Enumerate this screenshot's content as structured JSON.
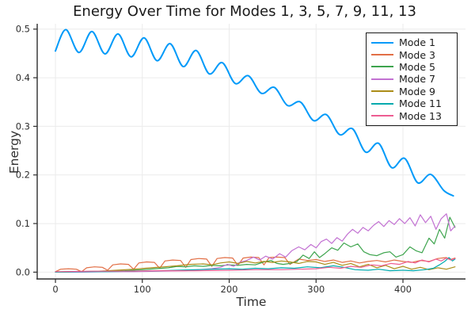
{
  "chart": {
    "title": "Energy Over Time for Modes 1, 3, 5, 7, 9, 11, 13",
    "xlabel": "Time",
    "ylabel": "Energy"
  },
  "chart_data": {
    "type": "line",
    "title": "Energy Over Time for Modes 1, 3, 5, 7, 9, 11, 13",
    "xlabel": "Time",
    "ylabel": "Energy",
    "grid": true,
    "legend_position": "top-right",
    "xlim": [
      -21,
      472
    ],
    "ylim": [
      -0.014,
      0.511
    ],
    "x_ticks": [
      0,
      100,
      200,
      300,
      400
    ],
    "x_tick_labels": [
      "0",
      "100",
      "200",
      "300",
      "400"
    ],
    "y_ticks": [
      0.0,
      0.1,
      0.2,
      0.3,
      0.4,
      0.5
    ],
    "y_tick_labels": [
      "0.0",
      "0.1",
      "0.2",
      "0.3",
      "0.4",
      "0.5"
    ],
    "series": [
      {
        "name": "Mode 1",
        "color": "#009af9",
        "smooth": true,
        "width": 2,
        "points": [
          [
            0,
            0.455
          ],
          [
            12,
            0.499
          ],
          [
            27,
            0.452
          ],
          [
            42,
            0.495
          ],
          [
            57,
            0.449
          ],
          [
            72,
            0.49
          ],
          [
            87,
            0.443
          ],
          [
            102,
            0.482
          ],
          [
            117,
            0.435
          ],
          [
            132,
            0.47
          ],
          [
            147,
            0.423
          ],
          [
            162,
            0.456
          ],
          [
            177,
            0.408
          ],
          [
            192,
            0.431
          ],
          [
            207,
            0.388
          ],
          [
            222,
            0.404
          ],
          [
            237,
            0.368
          ],
          [
            252,
            0.38
          ],
          [
            267,
            0.343
          ],
          [
            282,
            0.35
          ],
          [
            297,
            0.312
          ],
          [
            312,
            0.324
          ],
          [
            327,
            0.283
          ],
          [
            342,
            0.295
          ],
          [
            357,
            0.247
          ],
          [
            372,
            0.265
          ],
          [
            387,
            0.215
          ],
          [
            402,
            0.234
          ],
          [
            417,
            0.184
          ],
          [
            432,
            0.201
          ],
          [
            447,
            0.168
          ],
          [
            458,
            0.157
          ]
        ]
      },
      {
        "name": "Mode 3",
        "color": "#e26f46",
        "smooth": false,
        "width": 1.2,
        "points": [
          [
            0,
            0.001
          ],
          [
            6,
            0.006
          ],
          [
            15,
            0.007
          ],
          [
            24,
            0.006
          ],
          [
            30,
            0.001
          ],
          [
            36,
            0.009
          ],
          [
            45,
            0.011
          ],
          [
            54,
            0.01
          ],
          [
            60,
            0.004
          ],
          [
            66,
            0.015
          ],
          [
            75,
            0.017
          ],
          [
            84,
            0.016
          ],
          [
            90,
            0.006
          ],
          [
            96,
            0.019
          ],
          [
            105,
            0.021
          ],
          [
            114,
            0.02
          ],
          [
            120,
            0.008
          ],
          [
            126,
            0.023
          ],
          [
            135,
            0.025
          ],
          [
            144,
            0.024
          ],
          [
            150,
            0.01
          ],
          [
            156,
            0.026
          ],
          [
            165,
            0.028
          ],
          [
            174,
            0.027
          ],
          [
            180,
            0.012
          ],
          [
            186,
            0.028
          ],
          [
            195,
            0.03
          ],
          [
            204,
            0.029
          ],
          [
            210,
            0.014
          ],
          [
            216,
            0.029
          ],
          [
            225,
            0.031
          ],
          [
            234,
            0.03
          ],
          [
            240,
            0.015
          ],
          [
            246,
            0.03
          ],
          [
            255,
            0.031
          ],
          [
            264,
            0.03
          ],
          [
            270,
            0.016
          ],
          [
            280,
            0.027
          ],
          [
            290,
            0.024
          ],
          [
            300,
            0.026
          ],
          [
            310,
            0.022
          ],
          [
            320,
            0.025
          ],
          [
            330,
            0.02
          ],
          [
            340,
            0.023
          ],
          [
            350,
            0.019
          ],
          [
            360,
            0.022
          ],
          [
            370,
            0.024
          ],
          [
            380,
            0.021
          ],
          [
            390,
            0.025
          ],
          [
            400,
            0.022
          ],
          [
            410,
            0.02
          ],
          [
            420,
            0.024
          ],
          [
            430,
            0.022
          ],
          [
            440,
            0.028
          ],
          [
            450,
            0.03
          ],
          [
            455,
            0.026
          ],
          [
            460,
            0.029
          ]
        ]
      },
      {
        "name": "Mode 5",
        "color": "#3da44d",
        "smooth": false,
        "width": 1.2,
        "points": [
          [
            0,
            0.0
          ],
          [
            20,
            0.001
          ],
          [
            40,
            0.001
          ],
          [
            60,
            0.002
          ],
          [
            80,
            0.003
          ],
          [
            100,
            0.005
          ],
          [
            115,
            0.007
          ],
          [
            130,
            0.009
          ],
          [
            140,
            0.012
          ],
          [
            150,
            0.011
          ],
          [
            160,
            0.013
          ],
          [
            170,
            0.012
          ],
          [
            180,
            0.014
          ],
          [
            190,
            0.013
          ],
          [
            200,
            0.015
          ],
          [
            210,
            0.014
          ],
          [
            220,
            0.016
          ],
          [
            230,
            0.015
          ],
          [
            240,
            0.021
          ],
          [
            248,
            0.024
          ],
          [
            255,
            0.018
          ],
          [
            262,
            0.016
          ],
          [
            270,
            0.018
          ],
          [
            278,
            0.022
          ],
          [
            285,
            0.035
          ],
          [
            292,
            0.028
          ],
          [
            298,
            0.042
          ],
          [
            304,
            0.03
          ],
          [
            310,
            0.038
          ],
          [
            318,
            0.05
          ],
          [
            325,
            0.045
          ],
          [
            332,
            0.06
          ],
          [
            340,
            0.052
          ],
          [
            348,
            0.058
          ],
          [
            355,
            0.042
          ],
          [
            362,
            0.036
          ],
          [
            370,
            0.034
          ],
          [
            378,
            0.04
          ],
          [
            385,
            0.042
          ],
          [
            392,
            0.031
          ],
          [
            400,
            0.036
          ],
          [
            408,
            0.052
          ],
          [
            415,
            0.044
          ],
          [
            422,
            0.04
          ],
          [
            430,
            0.07
          ],
          [
            436,
            0.058
          ],
          [
            442,
            0.088
          ],
          [
            448,
            0.07
          ],
          [
            454,
            0.113
          ],
          [
            460,
            0.092
          ]
        ]
      },
      {
        "name": "Mode 7",
        "color": "#c271d2",
        "smooth": false,
        "width": 1.2,
        "points": [
          [
            0,
            0.0
          ],
          [
            30,
            0.0
          ],
          [
            60,
            0.001
          ],
          [
            90,
            0.001
          ],
          [
            120,
            0.002
          ],
          [
            150,
            0.003
          ],
          [
            165,
            0.005
          ],
          [
            180,
            0.007
          ],
          [
            190,
            0.01
          ],
          [
            198,
            0.016
          ],
          [
            205,
            0.012
          ],
          [
            212,
            0.02
          ],
          [
            220,
            0.024
          ],
          [
            228,
            0.031
          ],
          [
            235,
            0.025
          ],
          [
            242,
            0.033
          ],
          [
            250,
            0.027
          ],
          [
            258,
            0.038
          ],
          [
            265,
            0.031
          ],
          [
            272,
            0.044
          ],
          [
            280,
            0.052
          ],
          [
            287,
            0.046
          ],
          [
            294,
            0.057
          ],
          [
            300,
            0.05
          ],
          [
            306,
            0.063
          ],
          [
            312,
            0.068
          ],
          [
            318,
            0.059
          ],
          [
            324,
            0.071
          ],
          [
            330,
            0.064
          ],
          [
            336,
            0.078
          ],
          [
            342,
            0.088
          ],
          [
            348,
            0.08
          ],
          [
            354,
            0.092
          ],
          [
            360,
            0.085
          ],
          [
            366,
            0.096
          ],
          [
            372,
            0.104
          ],
          [
            378,
            0.094
          ],
          [
            384,
            0.106
          ],
          [
            390,
            0.098
          ],
          [
            396,
            0.11
          ],
          [
            402,
            0.1
          ],
          [
            408,
            0.112
          ],
          [
            414,
            0.095
          ],
          [
            420,
            0.118
          ],
          [
            426,
            0.102
          ],
          [
            432,
            0.115
          ],
          [
            438,
            0.088
          ],
          [
            444,
            0.11
          ],
          [
            450,
            0.12
          ],
          [
            455,
            0.085
          ],
          [
            460,
            0.095
          ]
        ]
      },
      {
        "name": "Mode 9",
        "color": "#ac8d18",
        "smooth": false,
        "width": 1.2,
        "points": [
          [
            0,
            0.0
          ],
          [
            25,
            0.001
          ],
          [
            50,
            0.002
          ],
          [
            70,
            0.004
          ],
          [
            90,
            0.006
          ],
          [
            110,
            0.009
          ],
          [
            125,
            0.011
          ],
          [
            140,
            0.013
          ],
          [
            155,
            0.016
          ],
          [
            170,
            0.017
          ],
          [
            180,
            0.015
          ],
          [
            190,
            0.019
          ],
          [
            200,
            0.021
          ],
          [
            210,
            0.018
          ],
          [
            220,
            0.022
          ],
          [
            230,
            0.019
          ],
          [
            240,
            0.022
          ],
          [
            250,
            0.02
          ],
          [
            260,
            0.023
          ],
          [
            270,
            0.021
          ],
          [
            280,
            0.018
          ],
          [
            290,
            0.022
          ],
          [
            300,
            0.021
          ],
          [
            310,
            0.016
          ],
          [
            320,
            0.02
          ],
          [
            330,
            0.014
          ],
          [
            340,
            0.018
          ],
          [
            350,
            0.011
          ],
          [
            360,
            0.016
          ],
          [
            370,
            0.009
          ],
          [
            380,
            0.014
          ],
          [
            390,
            0.007
          ],
          [
            400,
            0.012
          ],
          [
            410,
            0.006
          ],
          [
            420,
            0.01
          ],
          [
            430,
            0.005
          ],
          [
            440,
            0.009
          ],
          [
            450,
            0.006
          ],
          [
            460,
            0.011
          ]
        ]
      },
      {
        "name": "Mode 11",
        "color": "#00aaae",
        "smooth": false,
        "width": 1.2,
        "points": [
          [
            0,
            0.0
          ],
          [
            30,
            0.001
          ],
          [
            60,
            0.001
          ],
          [
            90,
            0.002
          ],
          [
            120,
            0.003
          ],
          [
            140,
            0.004
          ],
          [
            160,
            0.005
          ],
          [
            180,
            0.006
          ],
          [
            200,
            0.007
          ],
          [
            215,
            0.006
          ],
          [
            230,
            0.008
          ],
          [
            245,
            0.007
          ],
          [
            260,
            0.009
          ],
          [
            275,
            0.008
          ],
          [
            290,
            0.011
          ],
          [
            305,
            0.009
          ],
          [
            320,
            0.013
          ],
          [
            332,
            0.01
          ],
          [
            345,
            0.005
          ],
          [
            360,
            0.004
          ],
          [
            372,
            0.006
          ],
          [
            385,
            0.003
          ],
          [
            400,
            0.004
          ],
          [
            412,
            0.003
          ],
          [
            425,
            0.005
          ],
          [
            435,
            0.008
          ],
          [
            442,
            0.015
          ],
          [
            448,
            0.022
          ],
          [
            453,
            0.03
          ],
          [
            457,
            0.023
          ],
          [
            460,
            0.027
          ]
        ]
      },
      {
        "name": "Mode 13",
        "color": "#ed5d92",
        "smooth": false,
        "width": 1.2,
        "points": [
          [
            0,
            0.001
          ],
          [
            40,
            0.002
          ],
          [
            80,
            0.002
          ],
          [
            120,
            0.003
          ],
          [
            160,
            0.003
          ],
          [
            200,
            0.004
          ],
          [
            230,
            0.005
          ],
          [
            260,
            0.005
          ],
          [
            280,
            0.006
          ],
          [
            300,
            0.007
          ],
          [
            315,
            0.01
          ],
          [
            328,
            0.008
          ],
          [
            340,
            0.012
          ],
          [
            352,
            0.01
          ],
          [
            364,
            0.015
          ],
          [
            375,
            0.013
          ],
          [
            386,
            0.018
          ],
          [
            396,
            0.016
          ],
          [
            406,
            0.022
          ],
          [
            414,
            0.019
          ],
          [
            422,
            0.025
          ],
          [
            430,
            0.021
          ],
          [
            438,
            0.027
          ],
          [
            444,
            0.023
          ],
          [
            450,
            0.029
          ],
          [
            455,
            0.025
          ],
          [
            460,
            0.028
          ]
        ]
      }
    ],
    "style": {
      "grid_color": "#ebebeb",
      "spine_color": "#2e2e2e",
      "tick_label_color": "#2e2e2e",
      "background": "#ffffff"
    }
  }
}
